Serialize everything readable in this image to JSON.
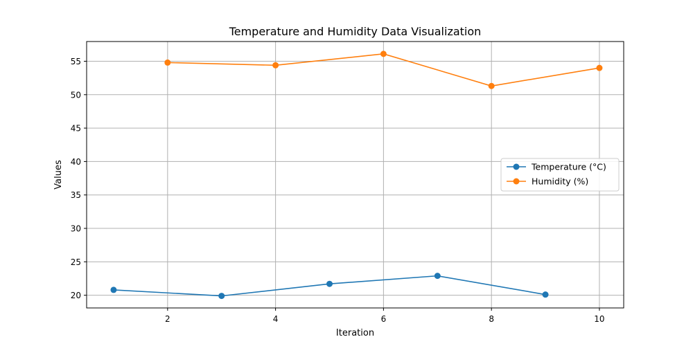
{
  "chart_data": {
    "type": "line",
    "title": "Temperature and Humidity Data Visualization",
    "xlabel": "Iteration",
    "ylabel": "Values",
    "xlim": [
      0.5,
      10.45
    ],
    "ylim": [
      18.1,
      57.95
    ],
    "xticks": [
      2,
      4,
      6,
      8,
      10
    ],
    "yticks": [
      20,
      25,
      30,
      35,
      40,
      45,
      50,
      55
    ],
    "grid": true,
    "legend_position": "center-right",
    "series": [
      {
        "name": "Temperature (°C)",
        "color": "#1f77b4",
        "marker": "circle",
        "x": [
          1,
          3,
          5,
          7,
          9
        ],
        "y": [
          20.8,
          19.9,
          21.7,
          22.9,
          20.1
        ]
      },
      {
        "name": "Humidity (%)",
        "color": "#ff7f0e",
        "marker": "circle",
        "x": [
          2,
          4,
          6,
          8,
          10
        ],
        "y": [
          54.8,
          54.4,
          56.1,
          51.3,
          54.0
        ]
      }
    ]
  }
}
